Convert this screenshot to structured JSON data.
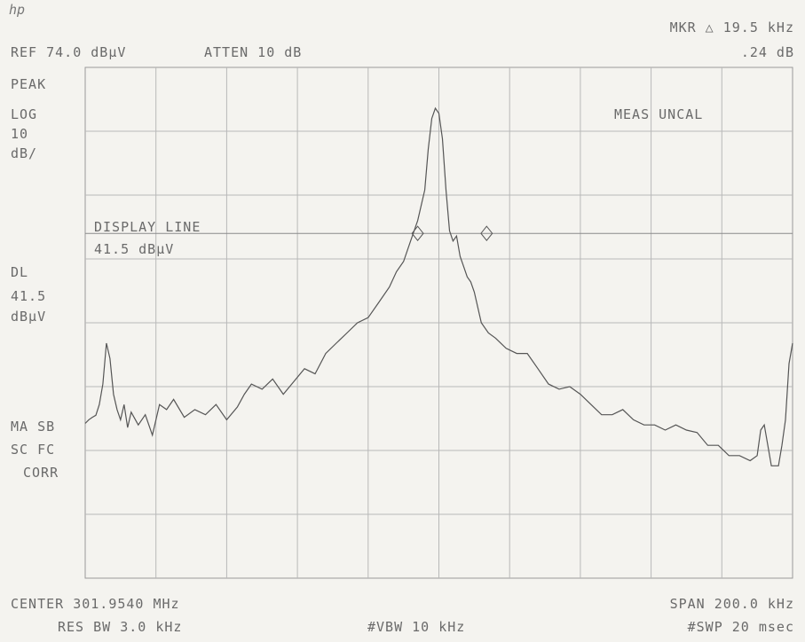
{
  "header": {
    "logo": "hp",
    "ref": "REF 74.0 dBμV",
    "atten": "ATTEN 10 dB",
    "marker": "MKR △ 19.5 kHz",
    "marker_val": ".24 dB"
  },
  "left_labels": {
    "mode": "PEAK",
    "scale_type": "LOG",
    "scale_val": "10",
    "scale_unit": "dB/",
    "dl_label": "DL",
    "dl_val": "41.5",
    "dl_unit": "dBμV",
    "ma_sb": "MA SB",
    "sc_fc": "SC FC",
    "corr": "CORR"
  },
  "annotations": {
    "meas_uncal": "MEAS UNCAL",
    "display_line_title": "DISPLAY LINE",
    "display_line_val": "41.5 dBμV"
  },
  "footer": {
    "center": "CENTER 301.9540 MHz",
    "span": "SPAN 200.0 kHz",
    "res_bw": "RES BW 3.0 kHz",
    "vbw": "#VBW 10 kHz",
    "swp": "#SWP 20 msec"
  },
  "chart_data": {
    "type": "line",
    "x_center_mhz": 301.954,
    "x_span_khz": 200,
    "xlim_khz": [
      -100,
      100
    ],
    "ylim_dbuv": [
      -26,
      74
    ],
    "ref_level_dbuv": 74,
    "scale_db_per_div": 10,
    "display_line_dbuv": 41.5,
    "grid": true,
    "series": [
      {
        "x": [
          -100,
          -99,
          -98,
          -97,
          -96,
          -95,
          -94,
          -93,
          -92,
          -91,
          -90,
          -89,
          -88,
          -87,
          -85,
          -83,
          -81,
          -79,
          -77,
          -75,
          -72,
          -69,
          -66,
          -63,
          -60,
          -57,
          -55,
          -53,
          -50,
          -47,
          -44,
          -41,
          -38,
          -35,
          -32,
          -29,
          -26,
          -23,
          -20,
          -17,
          -14,
          -12,
          -10,
          -8,
          -6,
          -4,
          -3,
          -2,
          -1,
          0,
          1,
          2,
          3,
          4,
          5,
          6,
          7,
          8,
          9,
          10,
          12,
          14,
          16,
          19,
          22,
          25,
          28,
          31,
          34,
          37,
          40,
          43,
          46,
          49,
          52,
          55,
          58,
          61,
          64,
          67,
          70,
          73,
          76,
          79,
          82,
          85,
          88,
          90,
          91,
          92,
          93,
          94,
          95,
          96,
          97,
          98,
          99,
          100
        ],
        "y": [
          4.3,
          5,
          5.5,
          5.9,
          8,
          12,
          20,
          17,
          10,
          7,
          5,
          8,
          3.5,
          6.5,
          4,
          6,
          2,
          8,
          7,
          9,
          5.5,
          7,
          6,
          8,
          5,
          7.5,
          10,
          12,
          11,
          13,
          10,
          12.5,
          15,
          14,
          18,
          20,
          22,
          24,
          25,
          28,
          31,
          34,
          36,
          40,
          44,
          50,
          58,
          64,
          66,
          65,
          60,
          50,
          42,
          40,
          41,
          37,
          35,
          33,
          32,
          30,
          24,
          22,
          21,
          19,
          18,
          18,
          15,
          12,
          11,
          11.5,
          10,
          8,
          6,
          6,
          7,
          5,
          4,
          4,
          3,
          4,
          3,
          2.5,
          0,
          0,
          -2,
          -2,
          -3,
          -2,
          3,
          4,
          0,
          -4,
          -4,
          -4,
          0,
          5,
          16,
          20
        ]
      }
    ],
    "markers": [
      {
        "x": -6,
        "y": 41.5
      },
      {
        "x": 13.5,
        "y": 41.5
      }
    ]
  }
}
